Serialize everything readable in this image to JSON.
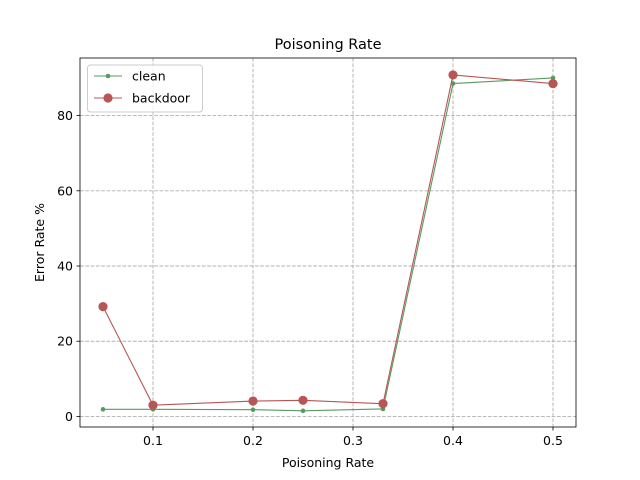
{
  "chart_data": {
    "type": "line",
    "title": "Poisoning Rate",
    "xlabel": "Poisoning Rate",
    "ylabel": "Error Rate %",
    "x": [
      0.05,
      0.1,
      0.2,
      0.25,
      0.33,
      0.4,
      0.5
    ],
    "xlim": [
      0.027,
      0.523
    ],
    "ylim": [
      -2.8,
      95.3
    ],
    "xticks": [
      0.1,
      0.2,
      0.3,
      0.4,
      0.5
    ],
    "xtick_labels": [
      "0.1",
      "0.2",
      "0.3",
      "0.4",
      "0.5"
    ],
    "yticks": [
      0,
      20,
      40,
      60,
      80
    ],
    "ytick_labels": [
      "0",
      "20",
      "40",
      "60",
      "80"
    ],
    "grid": true,
    "legend_position": "upper left",
    "series": [
      {
        "name": "clean",
        "color": "#5a9a62",
        "marker": "small-dot",
        "values": [
          1.9,
          1.9,
          1.8,
          1.5,
          2.0,
          88.5,
          90.0
        ]
      },
      {
        "name": "backdoor",
        "color": "#b85555",
        "marker": "large-dot",
        "values": [
          29.2,
          3.0,
          4.1,
          4.3,
          3.4,
          90.8,
          88.5
        ]
      }
    ]
  }
}
